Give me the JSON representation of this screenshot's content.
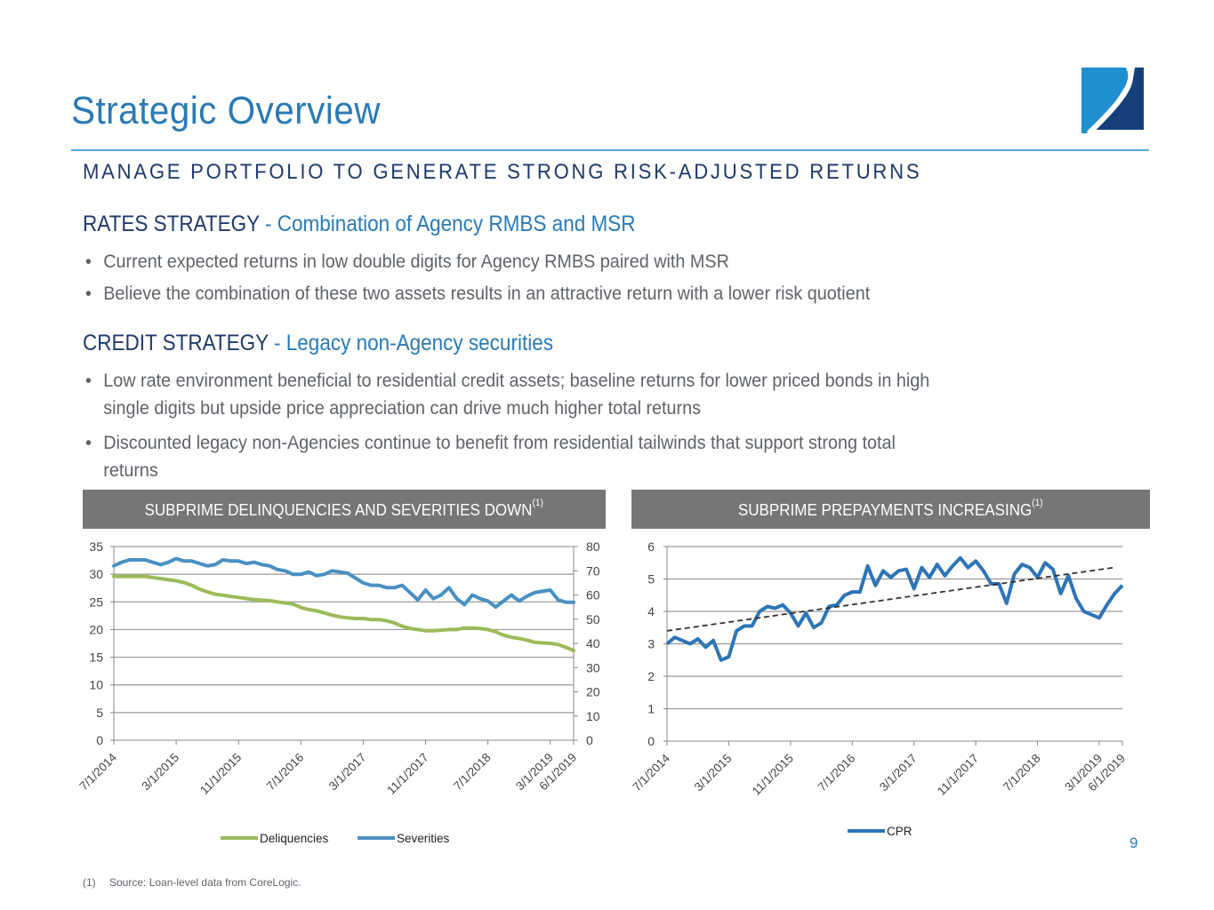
{
  "page": {
    "title": "Strategic Overview",
    "subtitle": "MANAGE PORTFOLIO TO GENERATE STRONG RISK-ADJUSTED RETURNS",
    "page_number": "9",
    "colors": {
      "title_blue": "#2a7ab5",
      "navy": "#1f3a6b",
      "body_gray": "#5f6369",
      "header_gray": "#767676",
      "delinquencies": "#9bbb59",
      "severities": "#4a90c2",
      "cpr": "#2e75b6"
    }
  },
  "sections": [
    {
      "heading": "RATES STRATEGY",
      "separator": " - ",
      "tagline": "Combination of Agency RMBS and MSR",
      "bullets": [
        {
          "lines": [
            "Current expected returns in low double digits for Agency RMBS paired with MSR"
          ]
        },
        {
          "lines": [
            "Believe the combination of these two assets results in an attractive return with a lower risk quotient"
          ]
        }
      ]
    },
    {
      "heading": "CREDIT STRATEGY",
      "separator": " - ",
      "tagline": "Legacy non-Agency securities",
      "bullets": [
        {
          "lines": [
            "Low rate environment beneficial to residential credit assets; baseline returns for lower priced bonds in high",
            "single digits but upside price appreciation can drive much higher total returns"
          ]
        },
        {
          "lines": [
            "Discounted legacy non-Agencies continue to benefit from residential tailwinds that support strong total",
            "returns"
          ]
        }
      ]
    }
  ],
  "footnote": {
    "marker": "(1)",
    "text": "Source: Loan-level data from CoreLogic."
  },
  "chart_data": [
    {
      "type": "line",
      "title": "SUBPRIME DELINQUENCIES AND SEVERITIES DOWN",
      "title_superscript": "(1)",
      "x_tick_labels": [
        "7/1/2014",
        "3/1/2015",
        "11/1/2015",
        "7/1/2016",
        "3/1/2017",
        "11/1/2017",
        "7/1/2018",
        "3/1/2019",
        "6/1/2019"
      ],
      "x_tick_index": [
        0,
        8,
        16,
        24,
        32,
        40,
        48,
        56,
        59
      ],
      "y_left": {
        "ticks": [
          "0",
          "5",
          "10",
          "15",
          "20",
          "25",
          "30",
          "35"
        ],
        "range": [
          0,
          35
        ]
      },
      "y_right": {
        "ticks": [
          "0",
          "10",
          "20",
          "30",
          "40",
          "50",
          "60",
          "70",
          "80"
        ],
        "range": [
          0,
          80
        ]
      },
      "grid": true,
      "legend": {
        "position": "bottom",
        "entries": [
          "Deliquencies",
          "Severities"
        ]
      },
      "series": [
        {
          "name": "Deliquencies",
          "axis": "left",
          "values": [
            29.6,
            29.6,
            29.6,
            29.6,
            29.6,
            29.4,
            29.2,
            29.0,
            28.8,
            28.5,
            28.0,
            27.3,
            26.8,
            26.4,
            26.2,
            26.0,
            25.8,
            25.6,
            25.4,
            25.3,
            25.2,
            25.0,
            24.8,
            24.6,
            24.0,
            23.6,
            23.4,
            23.0,
            22.6,
            22.3,
            22.1,
            22.0,
            22.0,
            21.8,
            21.8,
            21.6,
            21.2,
            20.6,
            20.2,
            20.0,
            19.8,
            19.8,
            19.9,
            20.0,
            20.0,
            20.3,
            20.3,
            20.2,
            20.0,
            19.6,
            19.0,
            18.6,
            18.4,
            18.1,
            17.7,
            17.6,
            17.5,
            17.3,
            16.8,
            16.2
          ],
          "display_note": "left axis"
        },
        {
          "name": "Severities",
          "axis": "right",
          "values": [
            72,
            73.5,
            74.5,
            74.5,
            74.5,
            73.5,
            72.5,
            73.5,
            75,
            74,
            74,
            73,
            72,
            72.5,
            74.5,
            74,
            74,
            73,
            73.5,
            72.5,
            72,
            70.5,
            70,
            68.5,
            68.5,
            69.5,
            68,
            68.5,
            70,
            69.5,
            69,
            67,
            65,
            64,
            64,
            63,
            63,
            64,
            61,
            58,
            62,
            58.5,
            60,
            63,
            58.5,
            56,
            60,
            58.5,
            57.5,
            55,
            57.5,
            60,
            57.5,
            59.5,
            61,
            61.5,
            62,
            58,
            57,
            57
          ]
        }
      ]
    },
    {
      "type": "line",
      "title": "SUBPRIME PREPAYMENTS INCREASING",
      "title_superscript": "(1)",
      "x_tick_labels": [
        "7/1/2014",
        "3/1/2015",
        "11/1/2015",
        "7/1/2016",
        "3/1/2017",
        "11/1/2017",
        "7/1/2018",
        "3/1/2019",
        "6/1/2019"
      ],
      "x_tick_index": [
        0,
        8,
        16,
        24,
        32,
        40,
        48,
        56,
        59
      ],
      "y": {
        "ticks": [
          "0",
          "1",
          "2",
          "3",
          "4",
          "5",
          "6"
        ],
        "range": [
          0,
          6
        ]
      },
      "grid": true,
      "legend": {
        "position": "bottom",
        "entries": [
          "CPR"
        ]
      },
      "series": [
        {
          "name": "CPR",
          "values": [
            3.0,
            3.2,
            3.1,
            3.0,
            3.15,
            2.9,
            3.1,
            2.5,
            2.6,
            3.4,
            3.55,
            3.55,
            4.0,
            4.15,
            4.1,
            4.2,
            3.95,
            3.55,
            3.95,
            3.5,
            3.65,
            4.15,
            4.2,
            4.5,
            4.6,
            4.6,
            5.4,
            4.8,
            5.25,
            5.05,
            5.25,
            5.3,
            4.7,
            5.35,
            5.05,
            5.45,
            5.1,
            5.4,
            5.65,
            5.35,
            5.55,
            5.25,
            4.85,
            4.85,
            4.25,
            5.15,
            5.45,
            5.35,
            5.05,
            5.5,
            5.3,
            4.55,
            5.1,
            4.4,
            4.0,
            3.9,
            3.8,
            4.2,
            4.55,
            4.8
          ]
        },
        {
          "name": "Trend",
          "style": "dashed",
          "values_linear": [
            3.4,
            5.35
          ]
        }
      ]
    }
  ]
}
